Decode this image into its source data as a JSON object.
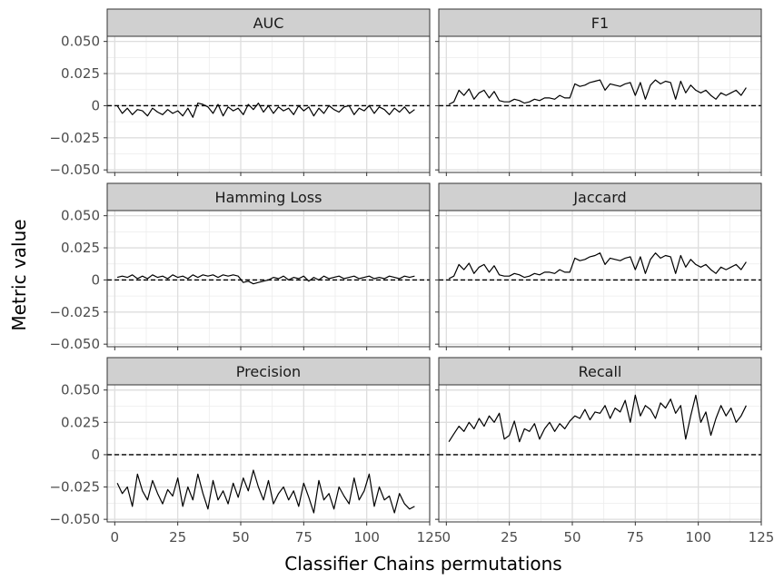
{
  "chart_data": {
    "type": "line",
    "xlabel": "Classifier Chains permutations",
    "ylabel": "Metric value",
    "xlim": [
      -3,
      125
    ],
    "ylim": [
      -0.052,
      0.054
    ],
    "xticks": [
      0,
      25,
      50,
      75,
      100,
      125
    ],
    "xtick_labels": [
      "0",
      "25",
      "50",
      "75",
      "100",
      "125"
    ],
    "yticks": [
      0.05,
      0.025,
      0,
      -0.025,
      -0.05
    ],
    "ytick_labels": [
      "0.050",
      "0.025",
      "0",
      "−0.025",
      "−0.050"
    ],
    "reference_line": {
      "y": 0,
      "style": "dashed"
    },
    "grid": true,
    "panels": [
      {
        "title": "AUC",
        "x": [
          1,
          3,
          5,
          7,
          9,
          11,
          13,
          15,
          17,
          19,
          21,
          23,
          25,
          27,
          29,
          31,
          33,
          35,
          37,
          39,
          41,
          43,
          45,
          47,
          49,
          51,
          53,
          55,
          57,
          59,
          61,
          63,
          65,
          67,
          69,
          71,
          73,
          75,
          77,
          79,
          81,
          83,
          85,
          87,
          89,
          91,
          93,
          95,
          97,
          99,
          101,
          103,
          105,
          107,
          109,
          111,
          113,
          115,
          117,
          119
        ],
        "values": [
          0,
          -0.006,
          -0.002,
          -0.007,
          -0.003,
          -0.004,
          -0.008,
          -0.002,
          -0.005,
          -0.007,
          -0.003,
          -0.006,
          -0.004,
          -0.008,
          -0.002,
          -0.009,
          0.002,
          0.001,
          -0.001,
          -0.006,
          0.001,
          -0.008,
          -0.001,
          -0.004,
          -0.002,
          -0.007,
          0.001,
          -0.003,
          0.002,
          -0.005,
          0,
          -0.006,
          -0.001,
          -0.004,
          -0.002,
          -0.007,
          0,
          -0.004,
          -0.001,
          -0.008,
          -0.002,
          -0.006,
          0,
          -0.003,
          -0.005,
          -0.001,
          0,
          -0.007,
          -0.002,
          -0.004,
          0,
          -0.006,
          -0.001,
          -0.003,
          -0.007,
          -0.002,
          -0.005,
          -0.001,
          -0.006,
          -0.003
        ]
      },
      {
        "title": "F1",
        "x": [
          1,
          3,
          5,
          7,
          9,
          11,
          13,
          15,
          17,
          19,
          21,
          23,
          25,
          27,
          29,
          31,
          33,
          35,
          37,
          39,
          41,
          43,
          45,
          47,
          49,
          51,
          53,
          55,
          57,
          59,
          61,
          63,
          65,
          67,
          69,
          71,
          73,
          75,
          77,
          79,
          81,
          83,
          85,
          87,
          89,
          91,
          93,
          95,
          97,
          99,
          101,
          103,
          105,
          107,
          109,
          111,
          113,
          115,
          117,
          119
        ],
        "values": [
          0.001,
          0.003,
          0.012,
          0.008,
          0.013,
          0.005,
          0.01,
          0.012,
          0.006,
          0.011,
          0.004,
          0.003,
          0.003,
          0.005,
          0.004,
          0.002,
          0.003,
          0.005,
          0.004,
          0.006,
          0.006,
          0.005,
          0.008,
          0.006,
          0.006,
          0.017,
          0.015,
          0.016,
          0.018,
          0.019,
          0.02,
          0.012,
          0.017,
          0.016,
          0.015,
          0.017,
          0.018,
          0.008,
          0.018,
          0.005,
          0.016,
          0.02,
          0.017,
          0.019,
          0.018,
          0.005,
          0.019,
          0.01,
          0.016,
          0.012,
          0.01,
          0.012,
          0.008,
          0.005,
          0.01,
          0.008,
          0.01,
          0.012,
          0.008,
          0.014
        ]
      },
      {
        "title": "Hamming Loss",
        "x": [
          1,
          3,
          5,
          7,
          9,
          11,
          13,
          15,
          17,
          19,
          21,
          23,
          25,
          27,
          29,
          31,
          33,
          35,
          37,
          39,
          41,
          43,
          45,
          47,
          49,
          51,
          53,
          55,
          57,
          59,
          61,
          63,
          65,
          67,
          69,
          71,
          73,
          75,
          77,
          79,
          81,
          83,
          85,
          87,
          89,
          91,
          93,
          95,
          97,
          99,
          101,
          103,
          105,
          107,
          109,
          111,
          113,
          115,
          117,
          119
        ],
        "values": [
          0.002,
          0.003,
          0.002,
          0.004,
          0.001,
          0.003,
          0.001,
          0.004,
          0.002,
          0.003,
          0.001,
          0.004,
          0.002,
          0.003,
          0.001,
          0.004,
          0.002,
          0.004,
          0.003,
          0.004,
          0.002,
          0.004,
          0.003,
          0.004,
          0.003,
          -0.002,
          -0.001,
          -0.003,
          -0.002,
          -0.001,
          0,
          0.002,
          0.001,
          0.003,
          0,
          0.002,
          0.001,
          0.003,
          -0.001,
          0.002,
          0,
          0.003,
          0.001,
          0.002,
          0.003,
          0.001,
          0.002,
          0.003,
          0.001,
          0.002,
          0.003,
          0.001,
          0.002,
          0.001,
          0.003,
          0.002,
          0.001,
          0.003,
          0.002,
          0.003
        ]
      },
      {
        "title": "Jaccard",
        "x": [
          1,
          3,
          5,
          7,
          9,
          11,
          13,
          15,
          17,
          19,
          21,
          23,
          25,
          27,
          29,
          31,
          33,
          35,
          37,
          39,
          41,
          43,
          45,
          47,
          49,
          51,
          53,
          55,
          57,
          59,
          61,
          63,
          65,
          67,
          69,
          71,
          73,
          75,
          77,
          79,
          81,
          83,
          85,
          87,
          89,
          91,
          93,
          95,
          97,
          99,
          101,
          103,
          105,
          107,
          109,
          111,
          113,
          115,
          117,
          119
        ],
        "values": [
          0.001,
          0.003,
          0.012,
          0.008,
          0.013,
          0.005,
          0.01,
          0.012,
          0.006,
          0.011,
          0.004,
          0.003,
          0.003,
          0.005,
          0.004,
          0.002,
          0.003,
          0.005,
          0.004,
          0.006,
          0.006,
          0.005,
          0.008,
          0.006,
          0.006,
          0.017,
          0.015,
          0.016,
          0.018,
          0.019,
          0.021,
          0.012,
          0.017,
          0.016,
          0.015,
          0.017,
          0.018,
          0.008,
          0.018,
          0.005,
          0.016,
          0.021,
          0.017,
          0.019,
          0.018,
          0.005,
          0.019,
          0.01,
          0.016,
          0.012,
          0.01,
          0.012,
          0.008,
          0.005,
          0.01,
          0.008,
          0.01,
          0.012,
          0.008,
          0.014
        ]
      },
      {
        "title": "Precision",
        "x": [
          1,
          3,
          5,
          7,
          9,
          11,
          13,
          15,
          17,
          19,
          21,
          23,
          25,
          27,
          29,
          31,
          33,
          35,
          37,
          39,
          41,
          43,
          45,
          47,
          49,
          51,
          53,
          55,
          57,
          59,
          61,
          63,
          65,
          67,
          69,
          71,
          73,
          75,
          77,
          79,
          81,
          83,
          85,
          87,
          89,
          91,
          93,
          95,
          97,
          99,
          101,
          103,
          105,
          107,
          109,
          111,
          113,
          115,
          117,
          119
        ],
        "values": [
          -0.022,
          -0.03,
          -0.025,
          -0.04,
          -0.015,
          -0.028,
          -0.035,
          -0.02,
          -0.03,
          -0.038,
          -0.027,
          -0.032,
          -0.018,
          -0.04,
          -0.025,
          -0.035,
          -0.015,
          -0.03,
          -0.042,
          -0.02,
          -0.035,
          -0.028,
          -0.038,
          -0.022,
          -0.033,
          -0.018,
          -0.028,
          -0.012,
          -0.025,
          -0.035,
          -0.02,
          -0.038,
          -0.03,
          -0.025,
          -0.035,
          -0.028,
          -0.04,
          -0.022,
          -0.033,
          -0.045,
          -0.02,
          -0.035,
          -0.03,
          -0.042,
          -0.025,
          -0.032,
          -0.038,
          -0.018,
          -0.035,
          -0.028,
          -0.015,
          -0.04,
          -0.025,
          -0.035,
          -0.032,
          -0.045,
          -0.03,
          -0.038,
          -0.042,
          -0.04
        ]
      },
      {
        "title": "Recall",
        "x": [
          1,
          3,
          5,
          7,
          9,
          11,
          13,
          15,
          17,
          19,
          21,
          23,
          25,
          27,
          29,
          31,
          33,
          35,
          37,
          39,
          41,
          43,
          45,
          47,
          49,
          51,
          53,
          55,
          57,
          59,
          61,
          63,
          65,
          67,
          69,
          71,
          73,
          75,
          77,
          79,
          81,
          83,
          85,
          87,
          89,
          91,
          93,
          95,
          97,
          99,
          101,
          103,
          105,
          107,
          109,
          111,
          113,
          115,
          117,
          119
        ],
        "values": [
          0.01,
          0.016,
          0.022,
          0.018,
          0.025,
          0.02,
          0.028,
          0.022,
          0.03,
          0.025,
          0.032,
          0.012,
          0.015,
          0.026,
          0.01,
          0.02,
          0.018,
          0.024,
          0.012,
          0.02,
          0.025,
          0.018,
          0.024,
          0.02,
          0.026,
          0.03,
          0.028,
          0.035,
          0.027,
          0.033,
          0.032,
          0.038,
          0.028,
          0.036,
          0.033,
          0.042,
          0.025,
          0.046,
          0.03,
          0.038,
          0.035,
          0.028,
          0.04,
          0.036,
          0.043,
          0.032,
          0.038,
          0.012,
          0.03,
          0.046,
          0.025,
          0.033,
          0.015,
          0.028,
          0.038,
          0.03,
          0.036,
          0.025,
          0.03,
          0.038
        ]
      }
    ]
  }
}
